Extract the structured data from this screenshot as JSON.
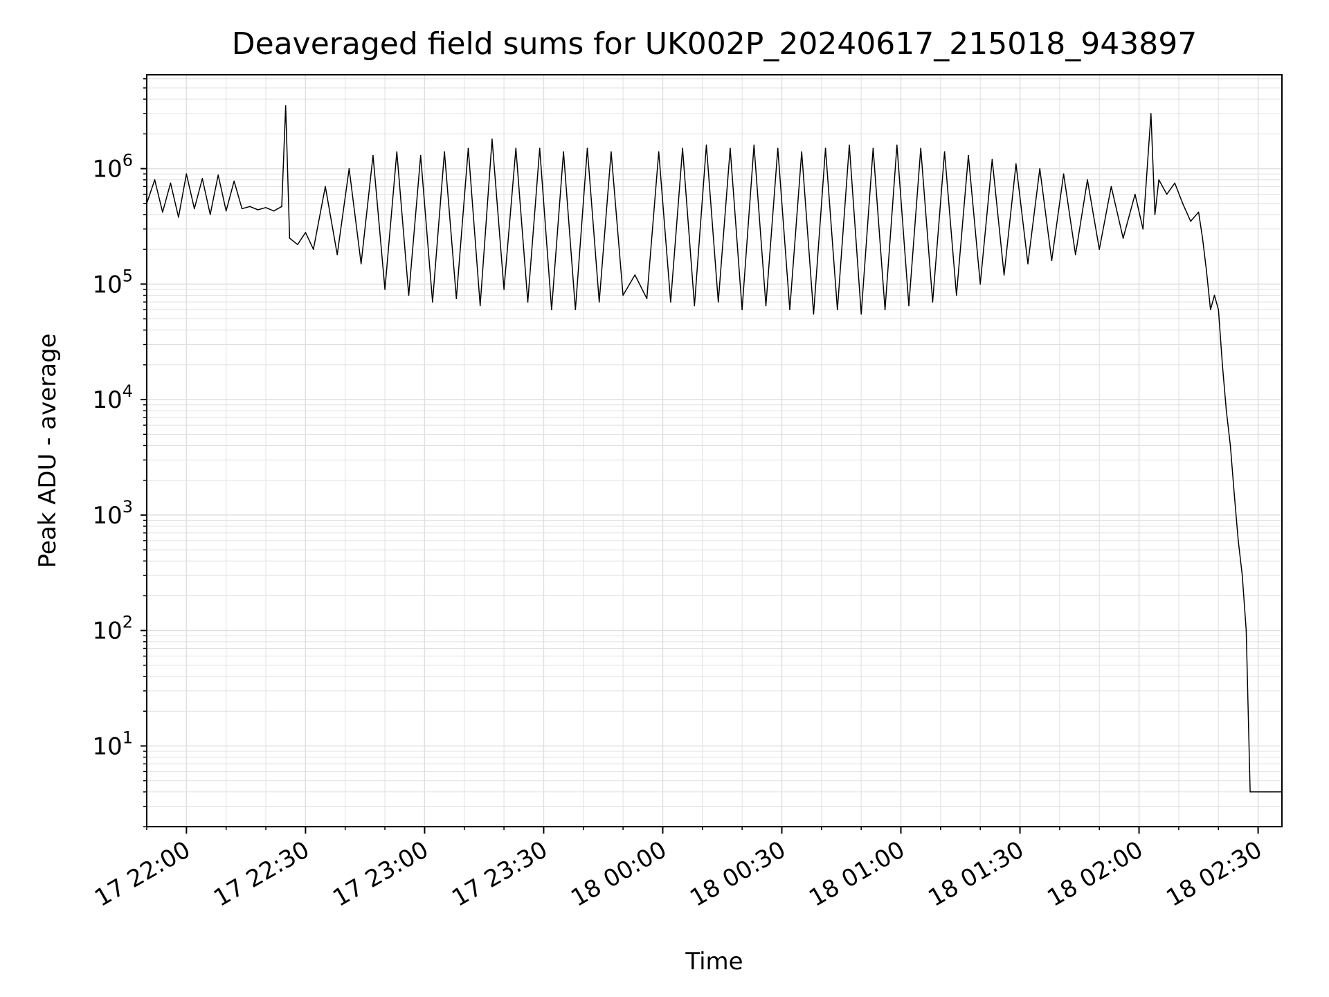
{
  "chart_data": {
    "type": "line",
    "title": "Deaveraged field sums for UK002P_20240617_215018_943897",
    "xlabel": "Time",
    "ylabel": "Peak ADU - average",
    "yscale": "log",
    "xlim": [
      "2024-06-17T21:50:00",
      "2024-06-18T02:36:00"
    ],
    "ylim": [
      2,
      6500000
    ],
    "grid": true,
    "legend": "none",
    "line_color": "#000000",
    "grid_color": "#e0e0e0",
    "x_ticks": [
      {
        "t": "2024-06-17T22:00:00",
        "label": "17 22:00"
      },
      {
        "t": "2024-06-17T22:30:00",
        "label": "17 22:30"
      },
      {
        "t": "2024-06-17T23:00:00",
        "label": "17 23:00"
      },
      {
        "t": "2024-06-17T23:30:00",
        "label": "17 23:30"
      },
      {
        "t": "2024-06-18T00:00:00",
        "label": "18 00:00"
      },
      {
        "t": "2024-06-18T00:30:00",
        "label": "18 00:30"
      },
      {
        "t": "2024-06-18T01:00:00",
        "label": "18 01:00"
      },
      {
        "t": "2024-06-18T01:30:00",
        "label": "18 01:30"
      },
      {
        "t": "2024-06-18T02:00:00",
        "label": "18 02:00"
      },
      {
        "t": "2024-06-18T02:30:00",
        "label": "18 02:30"
      }
    ],
    "y_ticks": [
      {
        "value": 10,
        "base": "10",
        "exp": "1"
      },
      {
        "value": 100,
        "base": "10",
        "exp": "2"
      },
      {
        "value": 1000,
        "base": "10",
        "exp": "3"
      },
      {
        "value": 10000,
        "base": "10",
        "exp": "4"
      },
      {
        "value": 100000,
        "base": "10",
        "exp": "5"
      },
      {
        "value": 1000000,
        "base": "10",
        "exp": "6"
      }
    ],
    "series": [
      {
        "x": [
          "2024-06-17T21:50:00",
          "2024-06-17T21:52:00",
          "2024-06-17T21:54:00",
          "2024-06-17T21:56:00",
          "2024-06-17T21:58:00",
          "2024-06-17T22:00:00",
          "2024-06-17T22:02:00",
          "2024-06-17T22:04:00",
          "2024-06-17T22:06:00",
          "2024-06-17T22:08:00",
          "2024-06-17T22:10:00",
          "2024-06-17T22:12:00",
          "2024-06-17T22:14:00",
          "2024-06-17T22:16:00",
          "2024-06-17T22:18:00",
          "2024-06-17T22:20:00",
          "2024-06-17T22:22:00",
          "2024-06-17T22:24:00",
          "2024-06-17T22:25:00",
          "2024-06-17T22:26:00",
          "2024-06-17T22:28:00",
          "2024-06-17T22:30:00",
          "2024-06-17T22:32:00",
          "2024-06-17T22:35:00",
          "2024-06-17T22:38:00",
          "2024-06-17T22:41:00",
          "2024-06-17T22:44:00",
          "2024-06-17T22:47:00",
          "2024-06-17T22:50:00",
          "2024-06-17T22:53:00",
          "2024-06-17T22:56:00",
          "2024-06-17T22:59:00",
          "2024-06-17T23:02:00",
          "2024-06-17T23:05:00",
          "2024-06-17T23:08:00",
          "2024-06-17T23:11:00",
          "2024-06-17T23:14:00",
          "2024-06-17T23:17:00",
          "2024-06-17T23:20:00",
          "2024-06-17T23:23:00",
          "2024-06-17T23:26:00",
          "2024-06-17T23:29:00",
          "2024-06-17T23:32:00",
          "2024-06-17T23:35:00",
          "2024-06-17T23:38:00",
          "2024-06-17T23:41:00",
          "2024-06-17T23:44:00",
          "2024-06-17T23:47:00",
          "2024-06-17T23:50:00",
          "2024-06-17T23:53:00",
          "2024-06-17T23:56:00",
          "2024-06-17T23:59:00",
          "2024-06-18T00:02:00",
          "2024-06-18T00:05:00",
          "2024-06-18T00:08:00",
          "2024-06-18T00:11:00",
          "2024-06-18T00:14:00",
          "2024-06-18T00:17:00",
          "2024-06-18T00:20:00",
          "2024-06-18T00:23:00",
          "2024-06-18T00:26:00",
          "2024-06-18T00:29:00",
          "2024-06-18T00:32:00",
          "2024-06-18T00:35:00",
          "2024-06-18T00:38:00",
          "2024-06-18T00:41:00",
          "2024-06-18T00:44:00",
          "2024-06-18T00:47:00",
          "2024-06-18T00:50:00",
          "2024-06-18T00:53:00",
          "2024-06-18T00:56:00",
          "2024-06-18T00:59:00",
          "2024-06-18T01:02:00",
          "2024-06-18T01:05:00",
          "2024-06-18T01:08:00",
          "2024-06-18T01:11:00",
          "2024-06-18T01:14:00",
          "2024-06-18T01:17:00",
          "2024-06-18T01:20:00",
          "2024-06-18T01:23:00",
          "2024-06-18T01:26:00",
          "2024-06-18T01:29:00",
          "2024-06-18T01:32:00",
          "2024-06-18T01:35:00",
          "2024-06-18T01:38:00",
          "2024-06-18T01:41:00",
          "2024-06-18T01:44:00",
          "2024-06-18T01:47:00",
          "2024-06-18T01:50:00",
          "2024-06-18T01:53:00",
          "2024-06-18T01:56:00",
          "2024-06-18T01:59:00",
          "2024-06-18T02:01:00",
          "2024-06-18T02:03:00",
          "2024-06-18T02:04:00",
          "2024-06-18T02:05:00",
          "2024-06-18T02:07:00",
          "2024-06-18T02:09:00",
          "2024-06-18T02:11:00",
          "2024-06-18T02:13:00",
          "2024-06-18T02:15:00",
          "2024-06-18T02:16:00",
          "2024-06-18T02:17:00",
          "2024-06-18T02:18:00",
          "2024-06-18T02:19:00",
          "2024-06-18T02:20:00",
          "2024-06-18T02:21:00",
          "2024-06-18T02:22:00",
          "2024-06-18T02:23:00",
          "2024-06-18T02:24:00",
          "2024-06-18T02:25:00",
          "2024-06-18T02:26:00",
          "2024-06-18T02:27:00",
          "2024-06-18T02:28:00",
          "2024-06-18T02:30:00",
          "2024-06-18T02:32:00",
          "2024-06-18T02:34:00",
          "2024-06-18T02:36:00"
        ],
        "values": [
          500000,
          800000,
          420000,
          750000,
          380000,
          900000,
          450000,
          820000,
          400000,
          880000,
          430000,
          780000,
          450000,
          470000,
          440000,
          460000,
          430000,
          470000,
          3500000,
          250000,
          220000,
          280000,
          200000,
          700000,
          180000,
          1000000,
          150000,
          1300000,
          90000,
          1400000,
          80000,
          1300000,
          70000,
          1400000,
          75000,
          1500000,
          65000,
          1800000,
          90000,
          1500000,
          70000,
          1500000,
          60000,
          1400000,
          60000,
          1500000,
          70000,
          1400000,
          80000,
          120000,
          75000,
          1400000,
          70000,
          1500000,
          65000,
          1600000,
          70000,
          1500000,
          60000,
          1600000,
          65000,
          1500000,
          60000,
          1400000,
          55000,
          1500000,
          60000,
          1600000,
          55000,
          1500000,
          60000,
          1600000,
          65000,
          1500000,
          70000,
          1400000,
          80000,
          1300000,
          100000,
          1200000,
          120000,
          1100000,
          150000,
          1000000,
          160000,
          900000,
          180000,
          800000,
          200000,
          700000,
          250000,
          600000,
          300000,
          3000000,
          400000,
          800000,
          600000,
          750000,
          500000,
          350000,
          420000,
          250000,
          130000,
          60000,
          80000,
          60000,
          20000,
          8000,
          4000,
          1500,
          600,
          300,
          100,
          4,
          4,
          4,
          4,
          4
        ]
      }
    ]
  }
}
